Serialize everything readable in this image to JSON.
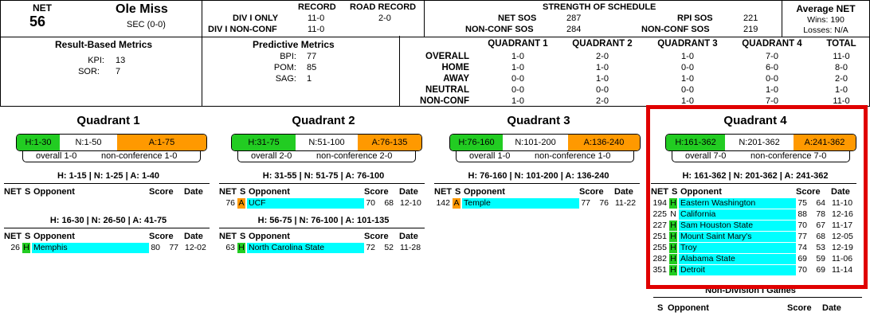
{
  "header": {
    "net_label": "NET",
    "net_value": "56",
    "team": "Ole Miss",
    "conference": "SEC (0-0)",
    "record_label": "RECORD",
    "road_record_label": "ROAD RECORD",
    "div1_only_label": "DIV I ONLY",
    "div1_only_value": "11-0",
    "road_value": "2-0",
    "div1_nonconf_label": "DIV I NON-CONF",
    "div1_nonconf_value": "11-0",
    "sos_title": "STRENGTH OF SCHEDULE",
    "net_sos_label": "NET SOS",
    "net_sos_value": "287",
    "rpi_sos_label": "RPI SOS",
    "rpi_sos_value": "221",
    "nc_sos_label": "NON-CONF SOS",
    "nc_sos_value": "284",
    "nc_sos2_label": "NON-CONF SOS",
    "nc_sos2_value": "219",
    "avg_net_title": "Average NET",
    "wins_text": "Wins: 190",
    "losses_text": "Losses: N/A"
  },
  "metrics": {
    "result_title": "Result-Based Metrics",
    "kpi_label": "KPI:",
    "kpi_value": "13",
    "sor_label": "SOR:",
    "sor_value": "7",
    "pred_title": "Predictive Metrics",
    "bpi_label": "BPI:",
    "bpi_value": "77",
    "pom_label": "POM:",
    "pom_value": "85",
    "sag_label": "SAG:",
    "sag_value": "1"
  },
  "quad_table": {
    "headers": [
      "QUADRANT 1",
      "QUADRANT 2",
      "QUADRANT 3",
      "QUADRANT 4",
      "TOTAL"
    ],
    "rows": [
      {
        "label": "OVERALL",
        "values": [
          "1-0",
          "2-0",
          "1-0",
          "7-0",
          "11-0"
        ]
      },
      {
        "label": "HOME",
        "values": [
          "1-0",
          "1-0",
          "0-0",
          "6-0",
          "8-0"
        ]
      },
      {
        "label": "AWAY",
        "values": [
          "0-0",
          "1-0",
          "1-0",
          "0-0",
          "2-0"
        ]
      },
      {
        "label": "NEUTRAL",
        "values": [
          "0-0",
          "0-0",
          "0-0",
          "1-0",
          "1-0"
        ]
      },
      {
        "label": "NON-CONF",
        "values": [
          "1-0",
          "2-0",
          "1-0",
          "7-0",
          "11-0"
        ]
      }
    ]
  },
  "quadrants": [
    {
      "title": "Quadrant 1",
      "h": "H:1-30",
      "n": "N:1-50",
      "a": "A:1-75",
      "overall": "overall 1-0",
      "nonconf": "non-conference 1-0",
      "tiers": [
        {
          "label": "H: 1-15 | N: 1-25 | A: 1-40",
          "games": []
        },
        {
          "label": "H: 16-30 | N: 26-50 | A: 41-75",
          "games": [
            {
              "net": "26",
              "loc": "H",
              "opp": "Memphis",
              "s1": "80",
              "s2": "77",
              "date": "12-02"
            }
          ]
        }
      ]
    },
    {
      "title": "Quadrant 2",
      "h": "H:31-75",
      "n": "N:51-100",
      "a": "A:76-135",
      "overall": "overall 2-0",
      "nonconf": "non-conference 2-0",
      "tiers": [
        {
          "label": "H: 31-55 | N: 51-75 | A: 76-100",
          "games": [
            {
              "net": "76",
              "loc": "A",
              "opp": "UCF",
              "s1": "70",
              "s2": "68",
              "date": "12-10"
            }
          ]
        },
        {
          "label": "H: 56-75 | N: 76-100 | A: 101-135",
          "games": [
            {
              "net": "63",
              "loc": "H",
              "opp": "North Carolina State",
              "s1": "72",
              "s2": "52",
              "date": "11-28"
            }
          ]
        }
      ]
    },
    {
      "title": "Quadrant 3",
      "h": "H:76-160",
      "n": "N:101-200",
      "a": "A:136-240",
      "overall": "overall 1-0",
      "nonconf": "non-conference 1-0",
      "tiers": [
        {
          "label": "H: 76-160 | N: 101-200 | A: 136-240",
          "games": [
            {
              "net": "142",
              "loc": "A",
              "opp": "Temple",
              "s1": "77",
              "s2": "76",
              "date": "11-22"
            }
          ]
        }
      ]
    },
    {
      "title": "Quadrant 4",
      "h": "H:161-362",
      "n": "N:201-362",
      "a": "A:241-362",
      "overall": "overall 7-0",
      "nonconf": "non-conference 7-0",
      "tiers": [
        {
          "label": "H: 161-362 | N: 201-362 | A: 241-362",
          "games": [
            {
              "net": "194",
              "loc": "H",
              "opp": "Eastern Washington",
              "s1": "75",
              "s2": "64",
              "date": "11-10"
            },
            {
              "net": "225",
              "loc": "N",
              "opp": "California",
              "s1": "88",
              "s2": "78",
              "date": "12-16"
            },
            {
              "net": "227",
              "loc": "H",
              "opp": "Sam Houston State",
              "s1": "70",
              "s2": "67",
              "date": "11-17"
            },
            {
              "net": "251",
              "loc": "H",
              "opp": "Mount Saint Mary's",
              "s1": "77",
              "s2": "68",
              "date": "12-05"
            },
            {
              "net": "255",
              "loc": "H",
              "opp": "Troy",
              "s1": "74",
              "s2": "53",
              "date": "12-19"
            },
            {
              "net": "282",
              "loc": "H",
              "opp": "Alabama State",
              "s1": "69",
              "s2": "59",
              "date": "11-06"
            },
            {
              "net": "351",
              "loc": "H",
              "opp": "Detroit",
              "s1": "70",
              "s2": "69",
              "date": "11-14"
            }
          ]
        }
      ]
    }
  ],
  "table_headers": {
    "net": "NET",
    "s": "S",
    "opponent": "Opponent",
    "score": "Score",
    "date": "Date"
  },
  "non_div": {
    "title": "Non-Division I Games",
    "s": "S",
    "opponent": "Opponent",
    "score": "Score",
    "date": "Date"
  },
  "colors": {
    "home": "#22cc22",
    "away": "#ff9900",
    "highlight": "#00ffff",
    "annotation": "#e00000"
  }
}
